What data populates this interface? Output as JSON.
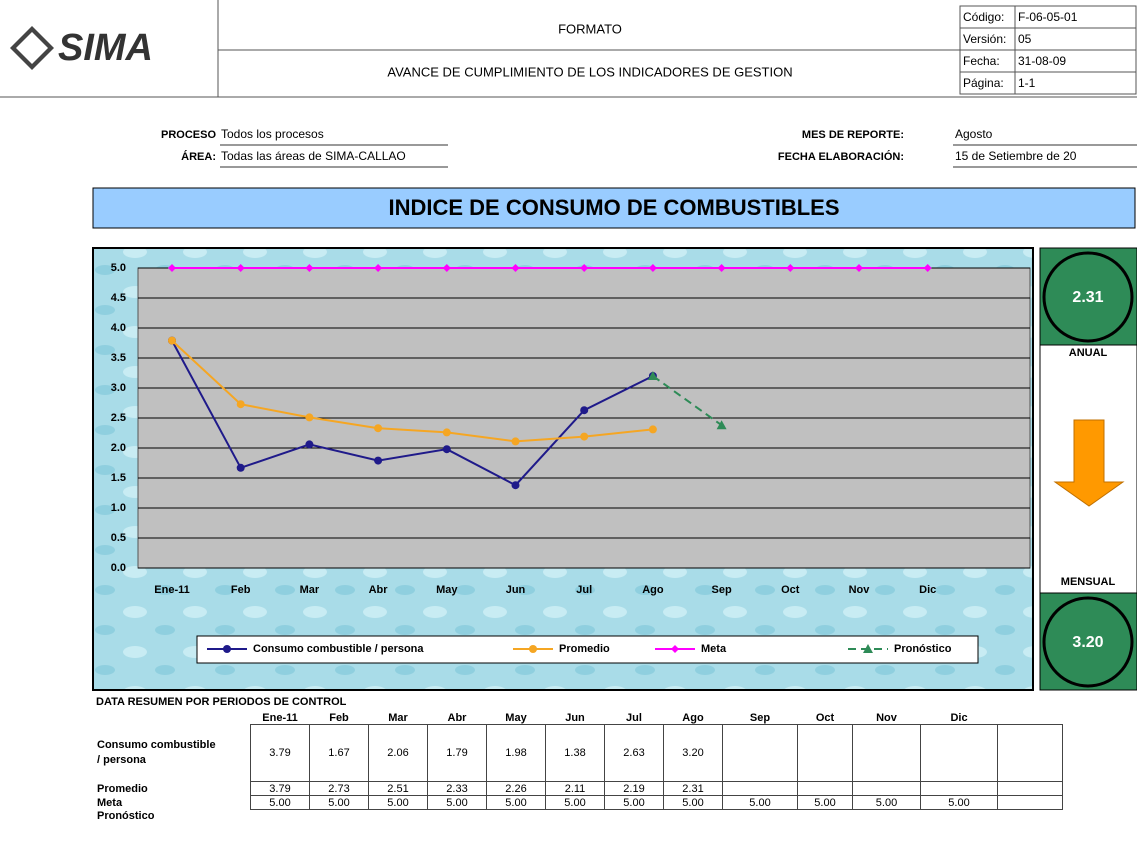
{
  "header": {
    "logo": "SIMA",
    "format": "FORMATO",
    "title": "AVANCE DE CUMPLIMIENTO DE LOS INDICADORES DE GESTION",
    "meta": [
      {
        "label": "Código:",
        "value": "F-06-05-01"
      },
      {
        "label": "Versión:",
        "value": "05"
      },
      {
        "label": "Fecha:",
        "value": "31-08-09"
      },
      {
        "label": "Página:",
        "value": "1-1"
      }
    ]
  },
  "info": {
    "proceso_label": "PROCESO",
    "proceso": "Todos los procesos",
    "area_label": "ÁREA:",
    "area": "Todas las áreas de SIMA-CALLAO",
    "mes_label": "MES DE REPORTE:",
    "mes": "Agosto",
    "fecha_label": "FECHA ELABORACIÓN:",
    "fecha": "15 de Setiembre de 20"
  },
  "banner": "INDICE DE CONSUMO DE COMBUSTIBLES",
  "chart_data": {
    "type": "line",
    "categories": [
      "Ene-11",
      "Feb",
      "Mar",
      "Abr",
      "May",
      "Jun",
      "Jul",
      "Ago",
      "Sep",
      "Oct",
      "Nov",
      "Dic"
    ],
    "series": [
      {
        "name": "Consumo combustible / persona",
        "color": "#1f1a8a",
        "marker": "circle",
        "values": [
          3.79,
          1.67,
          2.06,
          1.79,
          1.98,
          1.38,
          2.63,
          3.2,
          null,
          null,
          null,
          null
        ]
      },
      {
        "name": "Promedio",
        "color": "#f5a623",
        "marker": "circle",
        "values": [
          3.79,
          2.73,
          2.51,
          2.33,
          2.26,
          2.11,
          2.19,
          2.31,
          null,
          null,
          null,
          null
        ]
      },
      {
        "name": "Meta",
        "color": "#ff00ff",
        "marker": "diamond",
        "values": [
          5,
          5,
          5,
          5,
          5,
          5,
          5,
          5,
          5,
          5,
          5,
          5
        ]
      },
      {
        "name": "Pronóstico",
        "color": "#2e8b57",
        "marker": "triangle",
        "dashed": true,
        "values": [
          null,
          null,
          null,
          null,
          null,
          null,
          null,
          3.2,
          2.38,
          null,
          null,
          null
        ]
      }
    ],
    "ylim": [
      0,
      5
    ],
    "yticks": [
      {
        "value": 0,
        "label": "0.0"
      },
      {
        "value": 0.5,
        "label": "0.5"
      },
      {
        "value": 1,
        "label": "1.0"
      },
      {
        "value": 1.5,
        "label": "1.5"
      },
      {
        "value": 2,
        "label": "2.0"
      },
      {
        "value": 2.5,
        "label": "2.5"
      },
      {
        "value": 3,
        "label": "3.0"
      },
      {
        "value": 3.5,
        "label": "3.5"
      },
      {
        "value": 4,
        "label": "4.0"
      },
      {
        "value": 4.5,
        "label": "4.5"
      },
      {
        "value": 5,
        "label": "5.0"
      }
    ],
    "grid": true,
    "legend": "bottom"
  },
  "side": {
    "anual_value": "2.31",
    "anual": "ANUAL",
    "mensual": "MENSUAL",
    "mensual_value": "3.20"
  },
  "table": {
    "title": "DATA  RESUMEN POR PERIODOS DE CONTROL",
    "columns": [
      "Ene-11",
      "Feb",
      "Mar",
      "Abr",
      "May",
      "Jun",
      "Jul",
      "Ago",
      "Sep",
      "Oct",
      "Nov",
      "Dic"
    ],
    "rows": [
      {
        "label": "Consumo combustible / persona",
        "cells": [
          "3.79",
          "1.67",
          "2.06",
          "1.79",
          "1.98",
          "1.38",
          "2.63",
          "3.20"
        ]
      },
      {
        "label": "Promedio",
        "cells": [
          "3.79",
          "2.73",
          "2.51",
          "2.33",
          "2.26",
          "2.11",
          "2.19",
          "2.31"
        ]
      },
      {
        "label": "Meta",
        "cells": [
          "5.00",
          "5.00",
          "5.00",
          "5.00",
          "5.00",
          "5.00",
          "5.00",
          "5.00",
          "5.00",
          "5.00",
          "5.00",
          "5.00"
        ]
      },
      {
        "label": "Pronóstico",
        "cells": []
      }
    ]
  }
}
